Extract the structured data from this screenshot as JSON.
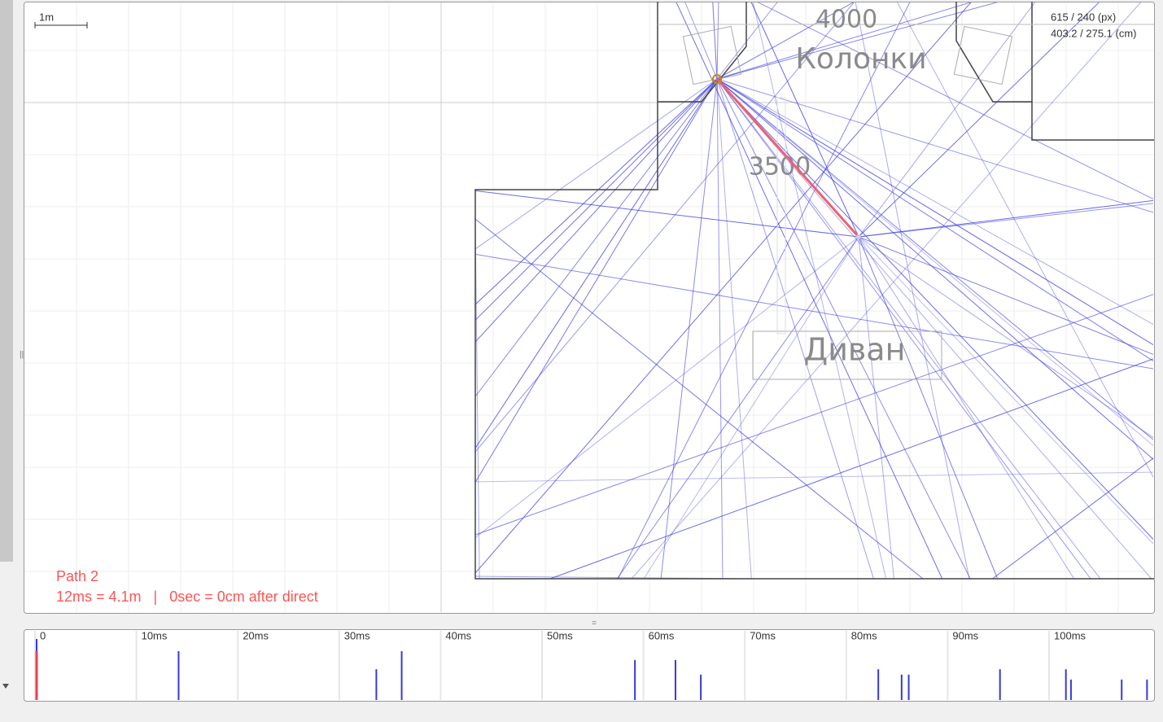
{
  "scale_label": "1m",
  "coords": [
    "615 / 240 (px)",
    "403.2 / 275.1 (cm)"
  ],
  "room_labels": [
    "4000",
    "Колонки",
    "3500",
    "Диван"
  ],
  "path_info": {
    "title": "Path 2",
    "details": "12ms = 4.1m   |   0sec = 0cm after direct"
  },
  "timeline": {
    "ticks": [
      0,
      {
        "value": 10,
        "label": "10ms"
      },
      {
        "value": 20,
        "label": "20ms"
      },
      {
        "value": 30,
        "label": "30ms"
      },
      {
        "value": 40,
        "label": "40ms"
      },
      {
        "value": 50,
        "label": "50ms"
      },
      {
        "value": 60,
        "label": "60ms"
      },
      {
        "value": 70,
        "label": "70ms"
      },
      {
        "value": 80,
        "label": "80ms"
      },
      {
        "value": 90,
        "label": "90ms"
      },
      {
        "value": 100,
        "label": "100ms"
      }
    ],
    "direct": {
      "t": 0,
      "h": 1
    },
    "reflections": [
      {
        "t": 0,
        "h": 1.25
      },
      {
        "t": 14,
        "h": 1
      },
      {
        "t": 33.5,
        "h": 0.63
      },
      {
        "t": 36,
        "h": 1
      },
      {
        "t": 59,
        "h": 0.82
      },
      {
        "t": 63,
        "h": 0.82
      },
      {
        "t": 65.5,
        "h": 0.52
      },
      {
        "t": 83,
        "h": 0.63
      },
      {
        "t": 85.3,
        "h": 0.52
      },
      {
        "t": 86,
        "h": 0.52
      },
      {
        "t": 95,
        "h": 0.63
      },
      {
        "t": 101.5,
        "h": 0.63
      },
      {
        "t": 102,
        "h": 0.42
      },
      {
        "t": 107,
        "h": 0.42
      },
      {
        "t": 109.5,
        "h": 0.42
      }
    ]
  }
}
